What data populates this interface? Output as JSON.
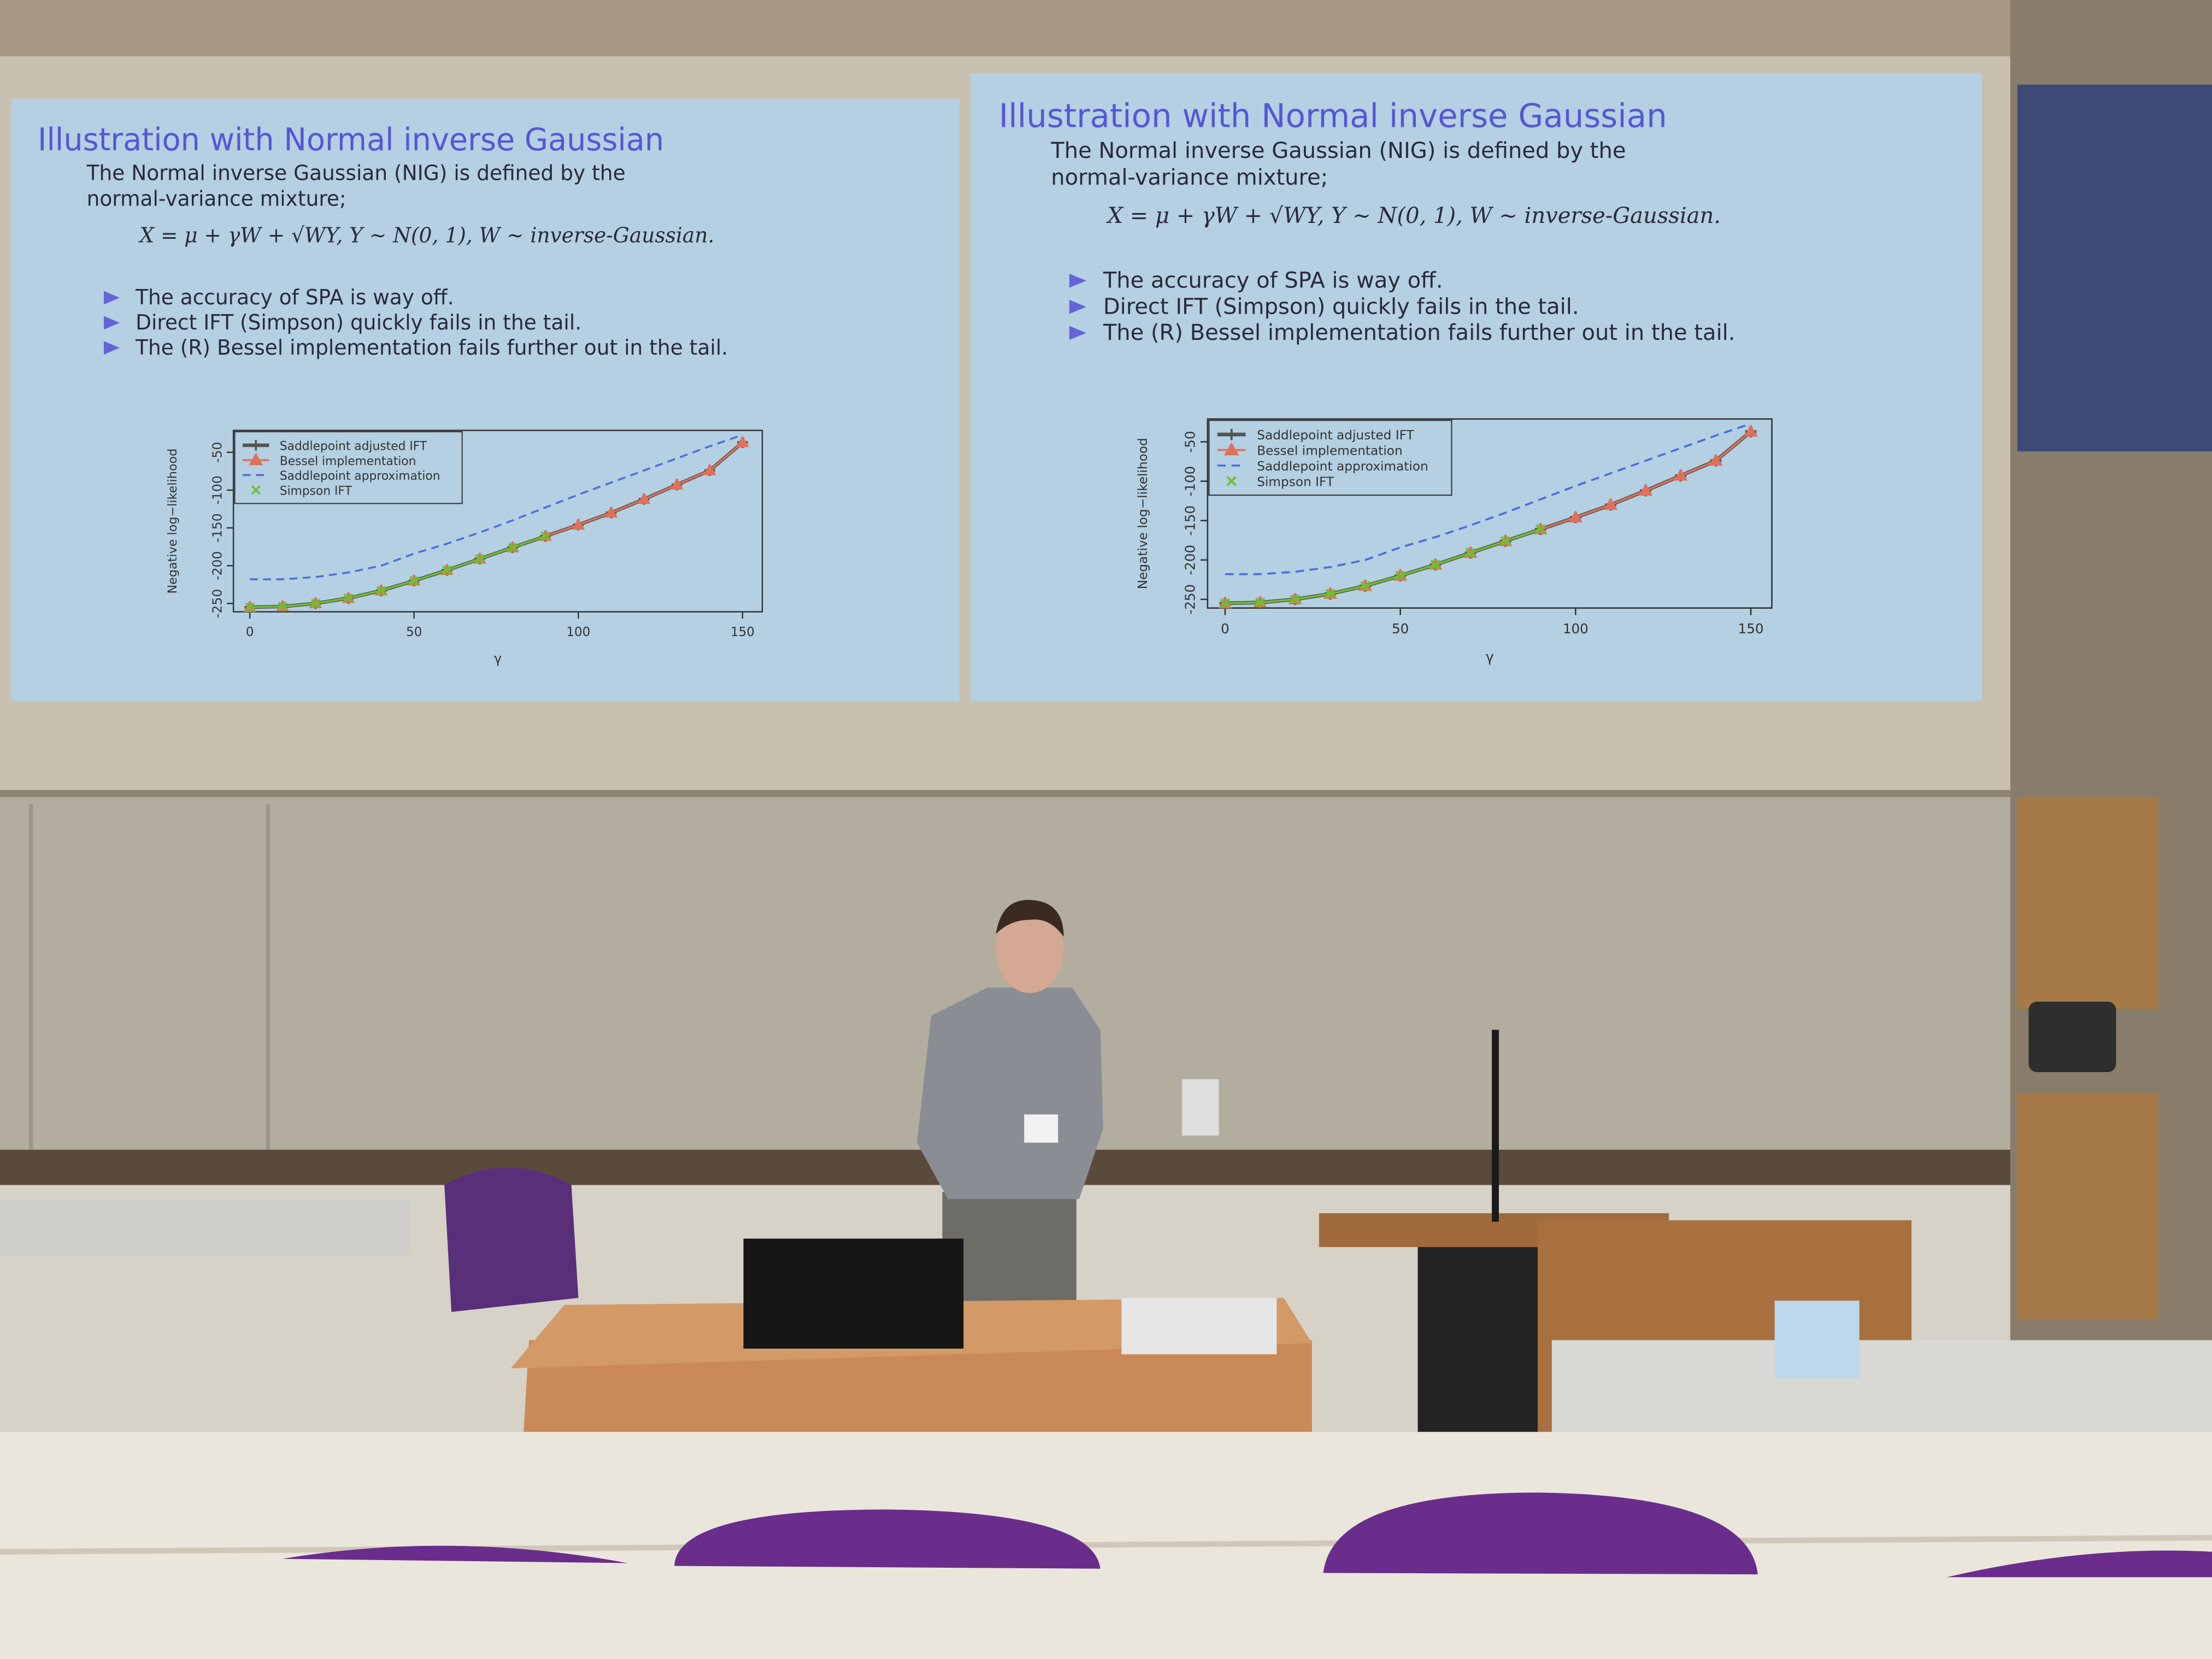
{
  "slide": {
    "title": "Illustration with Normal inverse Gaussian",
    "intro": [
      "The Normal inverse Gaussian (NIG) is defined by the",
      "normal-variance mixture;"
    ],
    "formula": "X = μ + γW + √WY,  Y ∼ N(0, 1),   W ∼  inverse-Gaussian.",
    "bullets": [
      "The accuracy of SPA is way off.",
      "Direct IFT (Simpson) quickly fails in the tail.",
      "The (R) Bessel implementation fails further out in the tail."
    ],
    "chart_data": {
      "type": "line",
      "x_label": "γ",
      "y_label": "Negative log−likelihood",
      "x": [
        0,
        10,
        20,
        30,
        40,
        50,
        60,
        70,
        80,
        90,
        100,
        110,
        120,
        130,
        140,
        150
      ],
      "xlim": [
        -5,
        156
      ],
      "ylim": [
        -261,
        -21
      ],
      "xticks": [
        0,
        50,
        100,
        150
      ],
      "yticks": [
        -250,
        -200,
        -150,
        -100,
        -50
      ],
      "series": [
        {
          "name": "Saddlepoint adjusted IFT",
          "color": "#555555",
          "marker": "plus",
          "values": [
            -255,
            -254,
            -250,
            -243,
            -233,
            -220,
            -206,
            -191,
            -176,
            -161,
            -146,
            -130,
            -112,
            -93,
            -74,
            -37
          ]
        },
        {
          "name": "Bessel implementation",
          "color": "#e0705a",
          "marker": "triangle",
          "values": [
            -255,
            -254,
            -250,
            -243,
            -233,
            -220,
            -206,
            -191,
            -176,
            -161,
            -146,
            -130,
            -112,
            -93,
            -74,
            -37
          ]
        },
        {
          "name": "Saddlepoint approximation",
          "color": "#4a6de0",
          "dashed": true,
          "values": [
            -218,
            -218,
            -215,
            -209,
            -200,
            -184,
            -171,
            -156,
            -140,
            -123,
            -106,
            -90,
            -74,
            -58,
            -42,
            -27
          ]
        },
        {
          "name": "Simpson IFT",
          "color": "#6cc030",
          "marker": "cross",
          "values": [
            -255,
            -254,
            -250,
            -243,
            -233,
            -220,
            -206,
            -191,
            -176,
            -161,
            null,
            null,
            null,
            null,
            null,
            null
          ]
        }
      ]
    }
  }
}
